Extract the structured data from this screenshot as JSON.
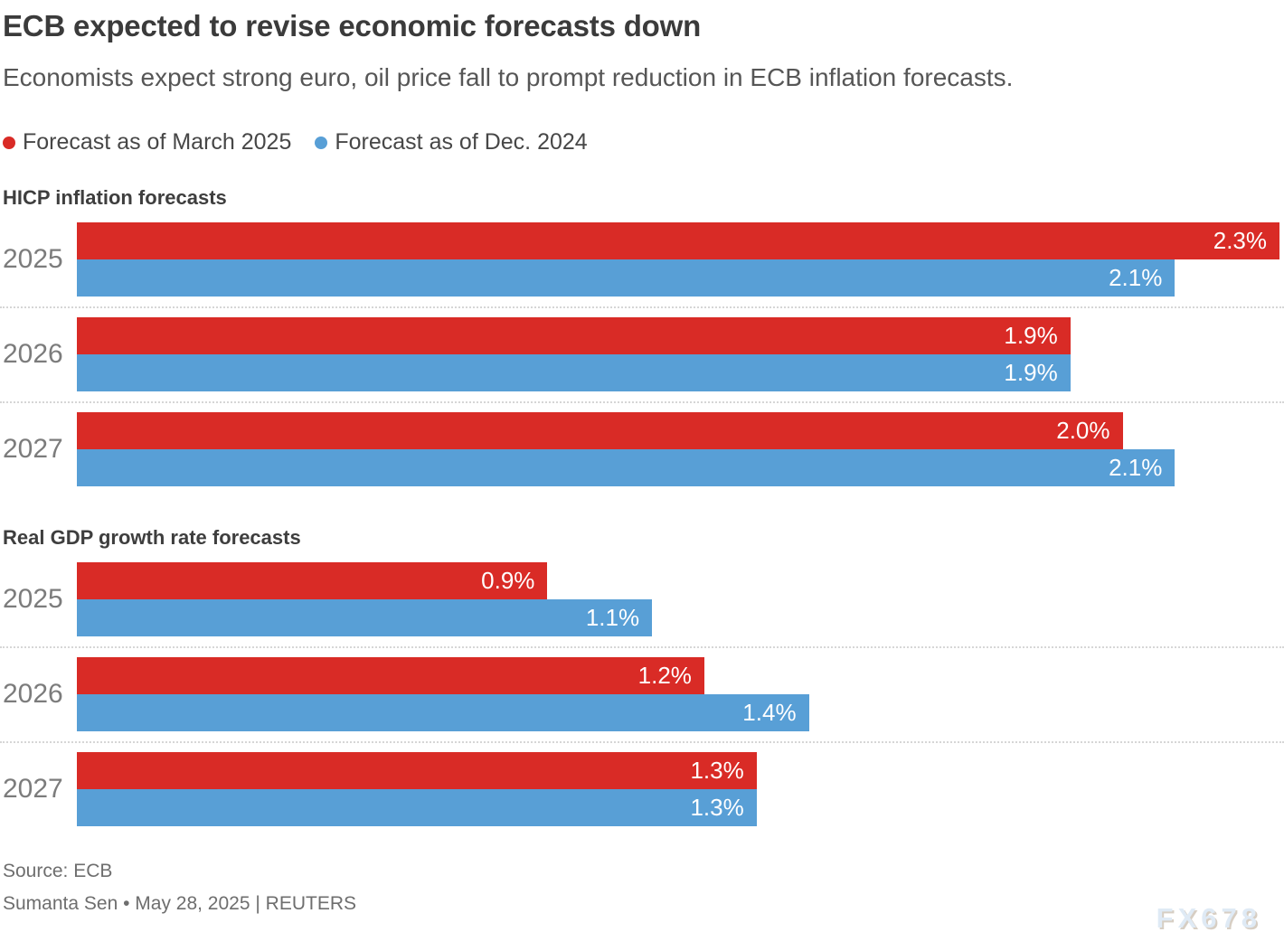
{
  "header": {
    "title": "ECB expected to revise economic forecasts down",
    "subtitle": "Economists expect strong euro, oil price fall to prompt reduction in ECB inflation forecasts.",
    "legend": [
      {
        "label": "Forecast as of March 2025",
        "color": "#d92b26"
      },
      {
        "label": "Forecast as of Dec. 2024",
        "color": "#589fd6"
      }
    ]
  },
  "colors": {
    "march_2025_red": "#d92b26",
    "dec_2024_blue": "#589fd6",
    "separator": "#d6d6d6",
    "title_text": "#3b3b3b",
    "category_text": "#7c7c7c"
  },
  "chart_data": [
    {
      "type": "bar",
      "orientation": "horizontal",
      "title": "HICP inflation forecasts",
      "categories": [
        "2025",
        "2026",
        "2027"
      ],
      "series": [
        {
          "name": "Forecast as of March 2025",
          "color": "#d92b26",
          "values": [
            2.3,
            1.9,
            2.0
          ],
          "labels": [
            "2.3%",
            "1.9%",
            "2.0%"
          ]
        },
        {
          "name": "Forecast as of Dec. 2024",
          "color": "#589fd6",
          "values": [
            2.1,
            1.9,
            2.1
          ],
          "labels": [
            "2.1%",
            "1.9%",
            "2.1%"
          ]
        }
      ],
      "xlim": [
        0,
        2.3
      ],
      "grid": false,
      "value_labels": "inside-end",
      "legend_position": "top"
    },
    {
      "type": "bar",
      "orientation": "horizontal",
      "title": "Real GDP growth rate forecasts",
      "categories": [
        "2025",
        "2026",
        "2027"
      ],
      "series": [
        {
          "name": "Forecast as of March 2025",
          "color": "#d92b26",
          "values": [
            0.9,
            1.2,
            1.3
          ],
          "labels": [
            "0.9%",
            "1.2%",
            "1.3%"
          ]
        },
        {
          "name": "Forecast as of Dec. 2024",
          "color": "#589fd6",
          "values": [
            1.1,
            1.4,
            1.3
          ],
          "labels": [
            "1.1%",
            "1.4%",
            "1.3%"
          ]
        }
      ],
      "xlim": [
        0,
        2.3
      ],
      "grid": false,
      "value_labels": "inside-end",
      "legend_position": "top"
    }
  ],
  "footer": {
    "source": "Source: ECB",
    "byline": "Sumanta Sen • May 28, 2025 | REUTERS",
    "watermark": "FX678"
  }
}
